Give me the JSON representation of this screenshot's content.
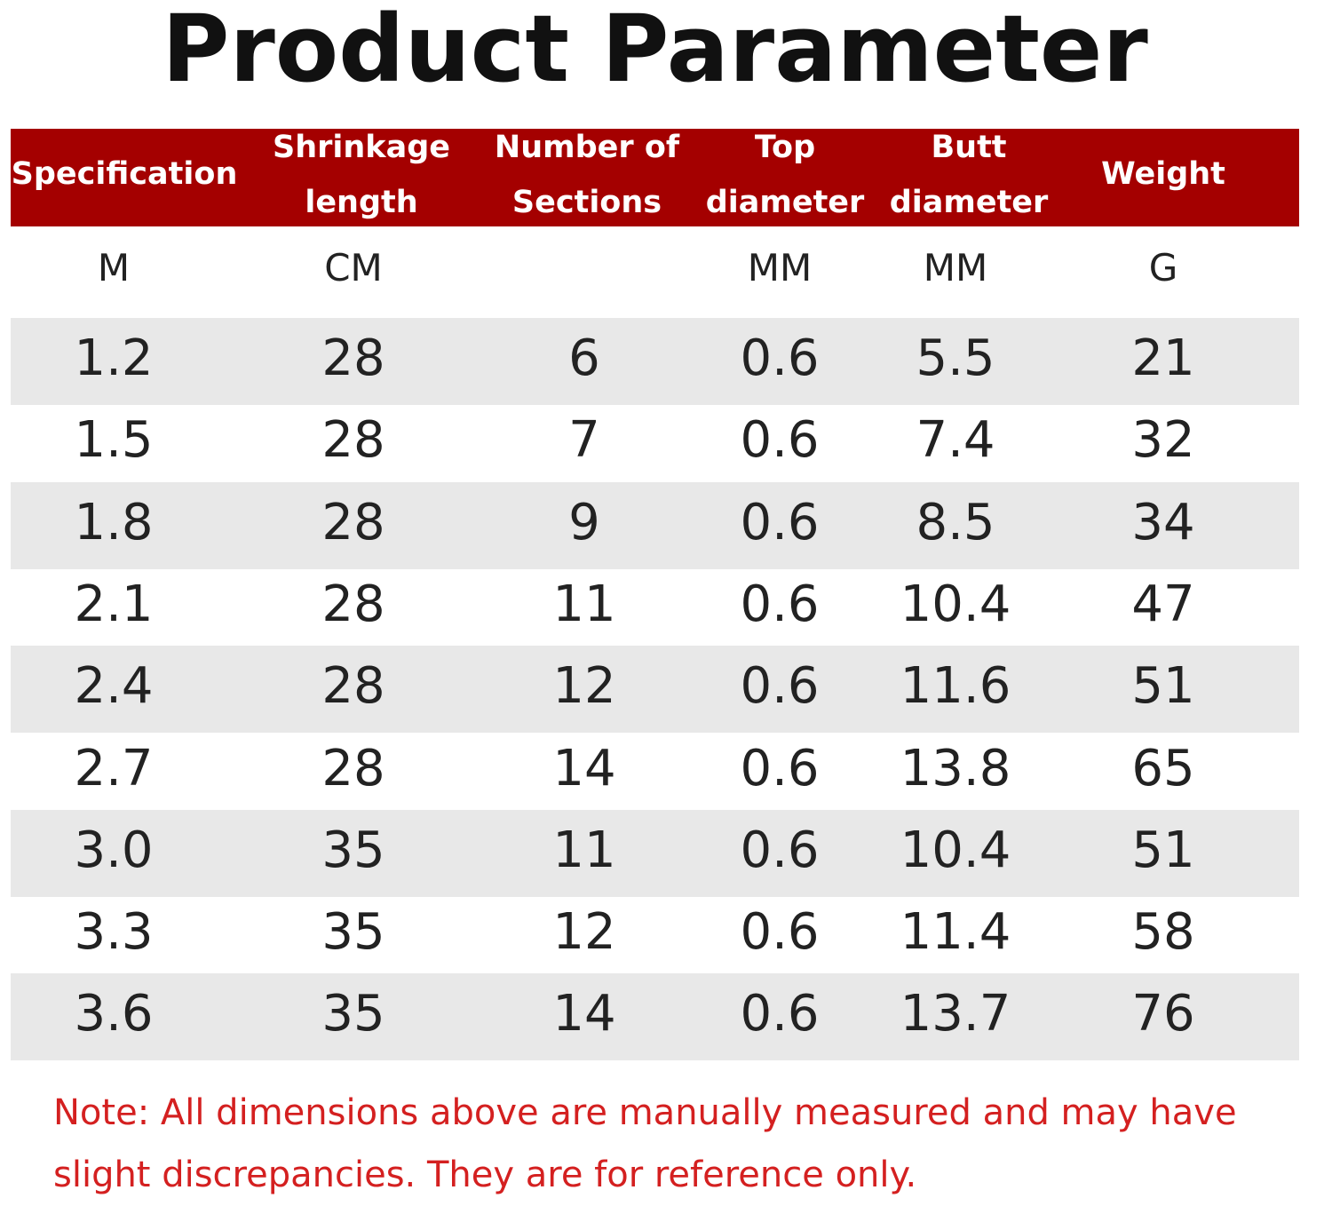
{
  "header": {
    "title": "Product Parameter"
  },
  "table": {
    "columns": [
      [
        "Specification"
      ],
      [
        "Shrinkage",
        "length"
      ],
      [
        "Number of",
        "Sections"
      ],
      [
        "Top",
        "diameter"
      ],
      [
        "Butt",
        "diameter"
      ],
      [
        "Weight"
      ]
    ],
    "units": [
      "M",
      "CM",
      null,
      "MM",
      "MM",
      "G"
    ],
    "rows": [
      [
        "1.2",
        "28",
        "6",
        "0.6",
        "5.5",
        "21"
      ],
      [
        "1.5",
        "28",
        "7",
        "0.6",
        "7.4",
        "32"
      ],
      [
        "1.8",
        "28",
        "9",
        "0.6",
        "8.5",
        "34"
      ],
      [
        "2.1",
        "28",
        "11",
        "0.6",
        "10.4",
        "47"
      ],
      [
        "2.4",
        "28",
        "12",
        "0.6",
        "11.6",
        "51"
      ],
      [
        "2.7",
        "28",
        "14",
        "0.6",
        "13.8",
        "65"
      ],
      [
        "3.0",
        "35",
        "11",
        "0.6",
        "10.4",
        "51"
      ],
      [
        "3.3",
        "35",
        "12",
        "0.6",
        "11.4",
        "58"
      ],
      [
        "3.6",
        "35",
        "14",
        "0.6",
        "13.7",
        "76"
      ]
    ]
  },
  "note": "Note: All dimensions above are manually measured and may have slight discrepancies. They are for reference only."
}
